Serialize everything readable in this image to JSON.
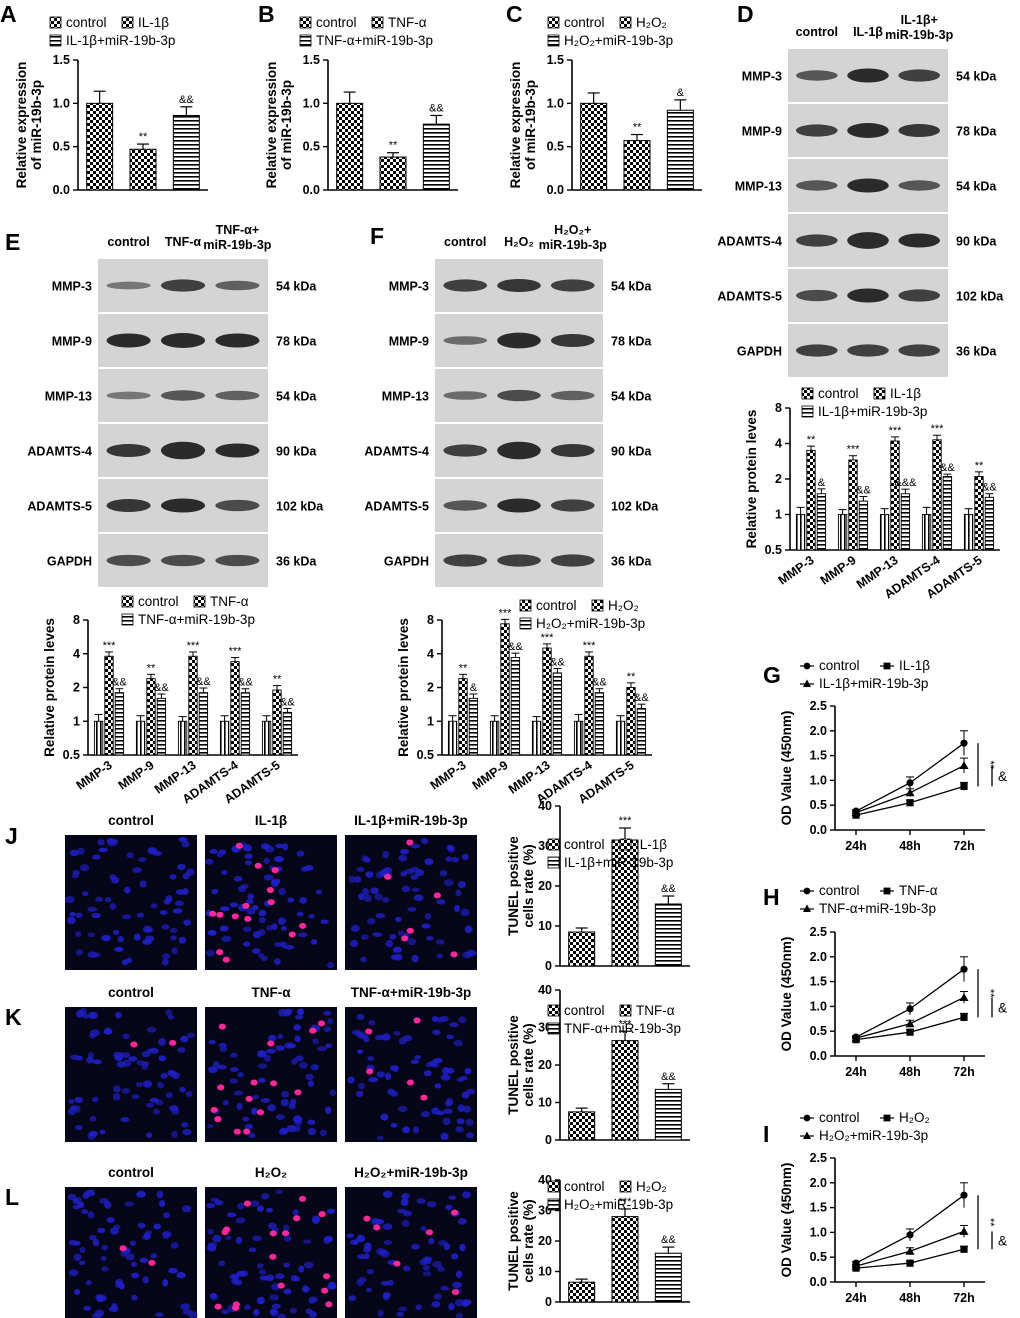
{
  "colors": {
    "band": "#222222",
    "blot_bg": "#d4d4d4",
    "tunel_bg": "#06061a",
    "nucleus": "#2020c8",
    "tunel_positive": "#ff2a9a"
  },
  "markers": [
    "MMP-3",
    "MMP-9",
    "MMP-13",
    "ADAMTS-4",
    "ADAMTS-5"
  ],
  "blots": {
    "D": {
      "label": "D",
      "lanes": [
        "control",
        "IL-1β",
        "IL-1β+ miR-19b-3p"
      ],
      "rows": [
        {
          "name": "MMP-3",
          "kda": "54 kDa"
        },
        {
          "name": "MMP-9",
          "kda": "78 kDa"
        },
        {
          "name": "MMP-13",
          "kda": "54 kDa"
        },
        {
          "name": "ADAMTS-4",
          "kda": "90 kDa"
        },
        {
          "name": "ADAMTS-5",
          "kda": "102 kDa"
        },
        {
          "name": "GAPDH",
          "kda": "36 kDa"
        }
      ]
    },
    "E": {
      "label": "E",
      "lanes": [
        "control",
        "TNF-α",
        "TNF-α+ miR-19b-3p"
      ],
      "rows": [
        {
          "name": "MMP-3",
          "kda": "54 kDa"
        },
        {
          "name": "MMP-9",
          "kda": "78 kDa"
        },
        {
          "name": "MMP-13",
          "kda": "54 kDa"
        },
        {
          "name": "ADAMTS-4",
          "kda": "90 kDa"
        },
        {
          "name": "ADAMTS-5",
          "kda": "102 kDa"
        },
        {
          "name": "GAPDH",
          "kda": "36 kDa"
        }
      ]
    },
    "F": {
      "label": "F",
      "lanes": [
        "control",
        "H₂O₂",
        "H₂O₂+ miR-19b-3p"
      ],
      "rows": [
        {
          "name": "MMP-3",
          "kda": "54 kDa"
        },
        {
          "name": "MMP-9",
          "kda": "78 kDa"
        },
        {
          "name": "MMP-13",
          "kda": "54 kDa"
        },
        {
          "name": "ADAMTS-4",
          "kda": "90 kDa"
        },
        {
          "name": "ADAMTS-5",
          "kda": "102 kDa"
        },
        {
          "name": "GAPDH",
          "kda": "36 kDa"
        }
      ]
    }
  },
  "tunel_images": {
    "J": {
      "label": "J",
      "conditions": [
        "control",
        "IL-1β",
        "IL-1β+miR-19b-3p"
      ]
    },
    "K": {
      "label": "K",
      "conditions": [
        "control",
        "TNF-α",
        "TNF-α+miR-19b-3p"
      ]
    },
    "L": {
      "label": "L",
      "conditions": [
        "control",
        "H₂O₂",
        "H₂O₂+miR-19b-3p"
      ]
    }
  },
  "chart_data": [
    {
      "id": "A",
      "type": "bar",
      "categories": [
        "control",
        "IL-1β",
        "IL-1β+miR-19b-3p"
      ],
      "values": [
        1.0,
        0.47,
        0.86
      ],
      "errors": [
        0.14,
        0.06,
        0.1
      ],
      "significance": [
        "",
        "**",
        "&&"
      ],
      "ylabel": "Relative expression of miR-19b-3p",
      "ylim": [
        0,
        1.5
      ],
      "yticks": [
        "0.0",
        "0.5",
        "1.0",
        "1.5"
      ],
      "legend": [
        "control",
        "IL-1β",
        "IL-1β+miR-19b-3p"
      ]
    },
    {
      "id": "B",
      "type": "bar",
      "categories": [
        "control",
        "TNF-α",
        "TNF-α+miR-19b-3p"
      ],
      "values": [
        1.0,
        0.38,
        0.76
      ],
      "errors": [
        0.13,
        0.05,
        0.1
      ],
      "significance": [
        "",
        "**",
        "&&"
      ],
      "ylabel": "Relative expression of miR-19b-3p",
      "ylim": [
        0,
        1.5
      ],
      "yticks": [
        "0.0",
        "0.5",
        "1.0",
        "1.5"
      ],
      "legend": [
        "control",
        "TNF-α",
        "TNF-α+miR-19b-3p"
      ]
    },
    {
      "id": "C",
      "type": "bar",
      "categories": [
        "control",
        "H₂O₂",
        "H₂O₂+miR-19b-3p"
      ],
      "values": [
        1.0,
        0.57,
        0.92
      ],
      "errors": [
        0.12,
        0.07,
        0.12
      ],
      "significance": [
        "",
        "**",
        "&"
      ],
      "ylabel": "Relative expression of miR-19b-3p",
      "ylim": [
        0,
        1.5
      ],
      "yticks": [
        "0.0",
        "0.5",
        "1.0",
        "1.5"
      ],
      "legend": [
        "control",
        "H₂O₂",
        "H₂O₂+miR-19b-3p"
      ]
    },
    {
      "id": "D-quant",
      "type": "bar",
      "scale": "log2",
      "categories": [
        "MMP-3",
        "MMP-9",
        "MMP-13",
        "ADAMTS-4",
        "ADAMTS-5"
      ],
      "ylabel": "Relative protein leves",
      "ylim": [
        0.5,
        8
      ],
      "yticks": [
        "0.5",
        "1",
        "2",
        "4",
        "8"
      ],
      "legend": [
        "control",
        "IL-1β",
        "IL-1β+miR-19b-3p"
      ],
      "series": [
        {
          "name": "control",
          "values": [
            1.0,
            1.0,
            1.0,
            1.0,
            1.0
          ],
          "errors": [
            0.15,
            0.1,
            0.12,
            0.15,
            0.12
          ],
          "significance": [
            "",
            "",
            "",
            "",
            ""
          ]
        },
        {
          "name": "IL-1β",
          "values": [
            3.5,
            2.9,
            4.2,
            4.3,
            2.1
          ],
          "errors": [
            0.3,
            0.25,
            0.35,
            0.4,
            0.2
          ],
          "significance": [
            "**",
            "***",
            "***",
            "***",
            "**"
          ]
        },
        {
          "name": "IL-1β+miR-19b-3p",
          "values": [
            1.5,
            1.3,
            1.5,
            2.1,
            1.4
          ],
          "errors": [
            0.15,
            0.12,
            0.14,
            0.1,
            0.1
          ],
          "significance": [
            "&",
            "&&",
            "&&&",
            "&&",
            "&&"
          ]
        }
      ]
    },
    {
      "id": "E-quant",
      "type": "bar",
      "scale": "log2",
      "categories": [
        "MMP-3",
        "MMP-9",
        "MMP-13",
        "ADAMTS-4",
        "ADAMTS-5"
      ],
      "ylabel": "Relative protein leves",
      "ylim": [
        0.5,
        8
      ],
      "yticks": [
        "0.5",
        "1",
        "2",
        "4",
        "8"
      ],
      "legend": [
        "control",
        "TNF-α",
        "TNF-α+miR-19b-3p"
      ],
      "series": [
        {
          "name": "control",
          "values": [
            1.0,
            1.0,
            1.0,
            1.0,
            1.0
          ],
          "errors": [
            0.15,
            0.12,
            0.1,
            0.12,
            0.12
          ],
          "significance": [
            "",
            "",
            "",
            "",
            ""
          ]
        },
        {
          "name": "TNF-α",
          "values": [
            3.8,
            2.4,
            3.8,
            3.4,
            1.9
          ],
          "errors": [
            0.35,
            0.22,
            0.35,
            0.3,
            0.18
          ],
          "significance": [
            "***",
            "**",
            "***",
            "***",
            "**"
          ]
        },
        {
          "name": "TNF-α+miR-19b-3p",
          "values": [
            1.8,
            1.6,
            1.8,
            1.8,
            1.2
          ],
          "errors": [
            0.15,
            0.15,
            0.18,
            0.15,
            0.1
          ],
          "significance": [
            "&&",
            "&&",
            "&&",
            "&&",
            "&&"
          ]
        }
      ]
    },
    {
      "id": "F-quant",
      "type": "bar",
      "scale": "log2",
      "categories": [
        "MMP-3",
        "MMP-9",
        "MMP-13",
        "ADAMTS-4",
        "ADAMTS-5"
      ],
      "ylabel": "Relative protein leves",
      "ylim": [
        0.5,
        8
      ],
      "yticks": [
        "0.5",
        "1",
        "2",
        "4",
        "8"
      ],
      "legend": [
        "control",
        "H₂O₂",
        "H₂O₂+miR-19b-3p"
      ],
      "series": [
        {
          "name": "control",
          "values": [
            1.0,
            1.0,
            1.0,
            1.0,
            1.0
          ],
          "errors": [
            0.12,
            0.12,
            0.1,
            0.15,
            0.12
          ],
          "significance": [
            "",
            "",
            "",
            "",
            ""
          ]
        },
        {
          "name": "H₂O₂",
          "values": [
            2.4,
            7.4,
            4.5,
            3.8,
            2.0
          ],
          "errors": [
            0.22,
            0.7,
            0.4,
            0.35,
            0.2
          ],
          "significance": [
            "**",
            "***",
            "***",
            "***",
            "**"
          ]
        },
        {
          "name": "H₂O₂+miR-19b-3p",
          "values": [
            1.6,
            3.7,
            2.7,
            1.8,
            1.3
          ],
          "errors": [
            0.15,
            0.35,
            0.25,
            0.15,
            0.12
          ],
          "significance": [
            "&",
            "&&",
            "&&",
            "&&",
            "&&"
          ]
        }
      ]
    },
    {
      "id": "G",
      "type": "line",
      "x": [
        "24h",
        "48h",
        "72h"
      ],
      "ylabel": "OD Value (450nm)",
      "ylim": [
        0,
        2.5
      ],
      "yticks": [
        "0.0",
        "0.5",
        "1.0",
        "1.5",
        "2.0",
        "2.5"
      ],
      "legend": [
        "control",
        "IL-1β",
        "IL-1β+miR-19b-3p"
      ],
      "bracket": [
        "**",
        "&"
      ],
      "series": [
        {
          "name": "control",
          "marker": "circle",
          "values": [
            0.38,
            0.95,
            1.75
          ],
          "errors": [
            0.03,
            0.12,
            0.25
          ]
        },
        {
          "name": "IL-1β",
          "marker": "square",
          "values": [
            0.3,
            0.55,
            0.88
          ],
          "errors": [
            0.03,
            0.05,
            0.08
          ]
        },
        {
          "name": "IL-1β+miR-19b-3p",
          "marker": "triangle",
          "values": [
            0.35,
            0.75,
            1.3
          ],
          "errors": [
            0.03,
            0.08,
            0.15
          ]
        }
      ]
    },
    {
      "id": "H",
      "type": "line",
      "x": [
        "24h",
        "48h",
        "72h"
      ],
      "ylabel": "OD Value (450nm)",
      "ylim": [
        0,
        2.5
      ],
      "yticks": [
        "0.0",
        "0.5",
        "1.0",
        "1.5",
        "2.0",
        "2.5"
      ],
      "legend": [
        "control",
        "TNF-α",
        "TNF-α+miR-19b-3p"
      ],
      "bracket": [
        "**",
        "&"
      ],
      "series": [
        {
          "name": "control",
          "marker": "circle",
          "values": [
            0.38,
            0.95,
            1.75
          ],
          "errors": [
            0.03,
            0.12,
            0.25
          ]
        },
        {
          "name": "TNF-α",
          "marker": "square",
          "values": [
            0.33,
            0.48,
            0.78
          ],
          "errors": [
            0.03,
            0.05,
            0.08
          ]
        },
        {
          "name": "TNF-α+miR-19b-3p",
          "marker": "triangle",
          "values": [
            0.36,
            0.65,
            1.18
          ],
          "errors": [
            0.03,
            0.07,
            0.12
          ]
        }
      ]
    },
    {
      "id": "I",
      "type": "line",
      "x": [
        "24h",
        "48h",
        "72h"
      ],
      "ylabel": "OD Value (450nm)",
      "ylim": [
        0,
        2.5
      ],
      "yticks": [
        "0.0",
        "0.5",
        "1.0",
        "1.5",
        "2.0",
        "2.5"
      ],
      "legend": [
        "control",
        "H₂O₂",
        "H₂O₂+miR-19b-3p"
      ],
      "bracket": [
        "**",
        "&"
      ],
      "series": [
        {
          "name": "control",
          "marker": "circle",
          "values": [
            0.38,
            0.95,
            1.75
          ],
          "errors": [
            0.03,
            0.12,
            0.25
          ]
        },
        {
          "name": "H₂O₂",
          "marker": "square",
          "values": [
            0.28,
            0.38,
            0.66
          ],
          "errors": [
            0.03,
            0.04,
            0.06
          ]
        },
        {
          "name": "H₂O₂+miR-19b-3p",
          "marker": "triangle",
          "values": [
            0.32,
            0.62,
            1.02
          ],
          "errors": [
            0.03,
            0.07,
            0.12
          ]
        }
      ]
    },
    {
      "id": "J-quant",
      "type": "bar",
      "categories": [
        "control",
        "IL-1β",
        "IL-1β+miR-19b-3p"
      ],
      "values": [
        8.5,
        31.5,
        15.5
      ],
      "errors": [
        1.0,
        3.0,
        2.0
      ],
      "significance": [
        "",
        "***",
        "&&"
      ],
      "ylabel": "TUNEL positive cells rate (%)",
      "ylim": [
        0,
        40
      ],
      "yticks": [
        "0",
        "10",
        "20",
        "30",
        "40"
      ],
      "legend": [
        "control",
        "IL-1β",
        "IL-1β+miR-19b-3p"
      ]
    },
    {
      "id": "K-quant",
      "type": "bar",
      "categories": [
        "control",
        "TNF-α",
        "TNF-α+miR-19b-3p"
      ],
      "values": [
        7.5,
        26.5,
        13.5
      ],
      "errors": [
        1.0,
        2.5,
        1.5
      ],
      "significance": [
        "",
        "***",
        "&&"
      ],
      "ylabel": "TUNEL positive cells rate (%)",
      "ylim": [
        0,
        40
      ],
      "yticks": [
        "0",
        "10",
        "20",
        "30",
        "40"
      ],
      "legend": [
        "control",
        "TNF-α",
        "TNF-α+miR-19b-3p"
      ]
    },
    {
      "id": "L-quant",
      "type": "bar",
      "categories": [
        "control",
        "H₂O₂",
        "H₂O₂+miR-19b-3p"
      ],
      "values": [
        6.5,
        28.0,
        16.0
      ],
      "errors": [
        1.0,
        2.5,
        2.0
      ],
      "significance": [
        "",
        "***",
        "&&"
      ],
      "ylabel": "TUNEL positive cells rate (%)",
      "ylim": [
        0,
        40
      ],
      "yticks": [
        "0",
        "10",
        "20",
        "30",
        "40"
      ],
      "legend": [
        "control",
        "H₂O₂",
        "H₂O₂+miR-19b-3p"
      ]
    }
  ]
}
